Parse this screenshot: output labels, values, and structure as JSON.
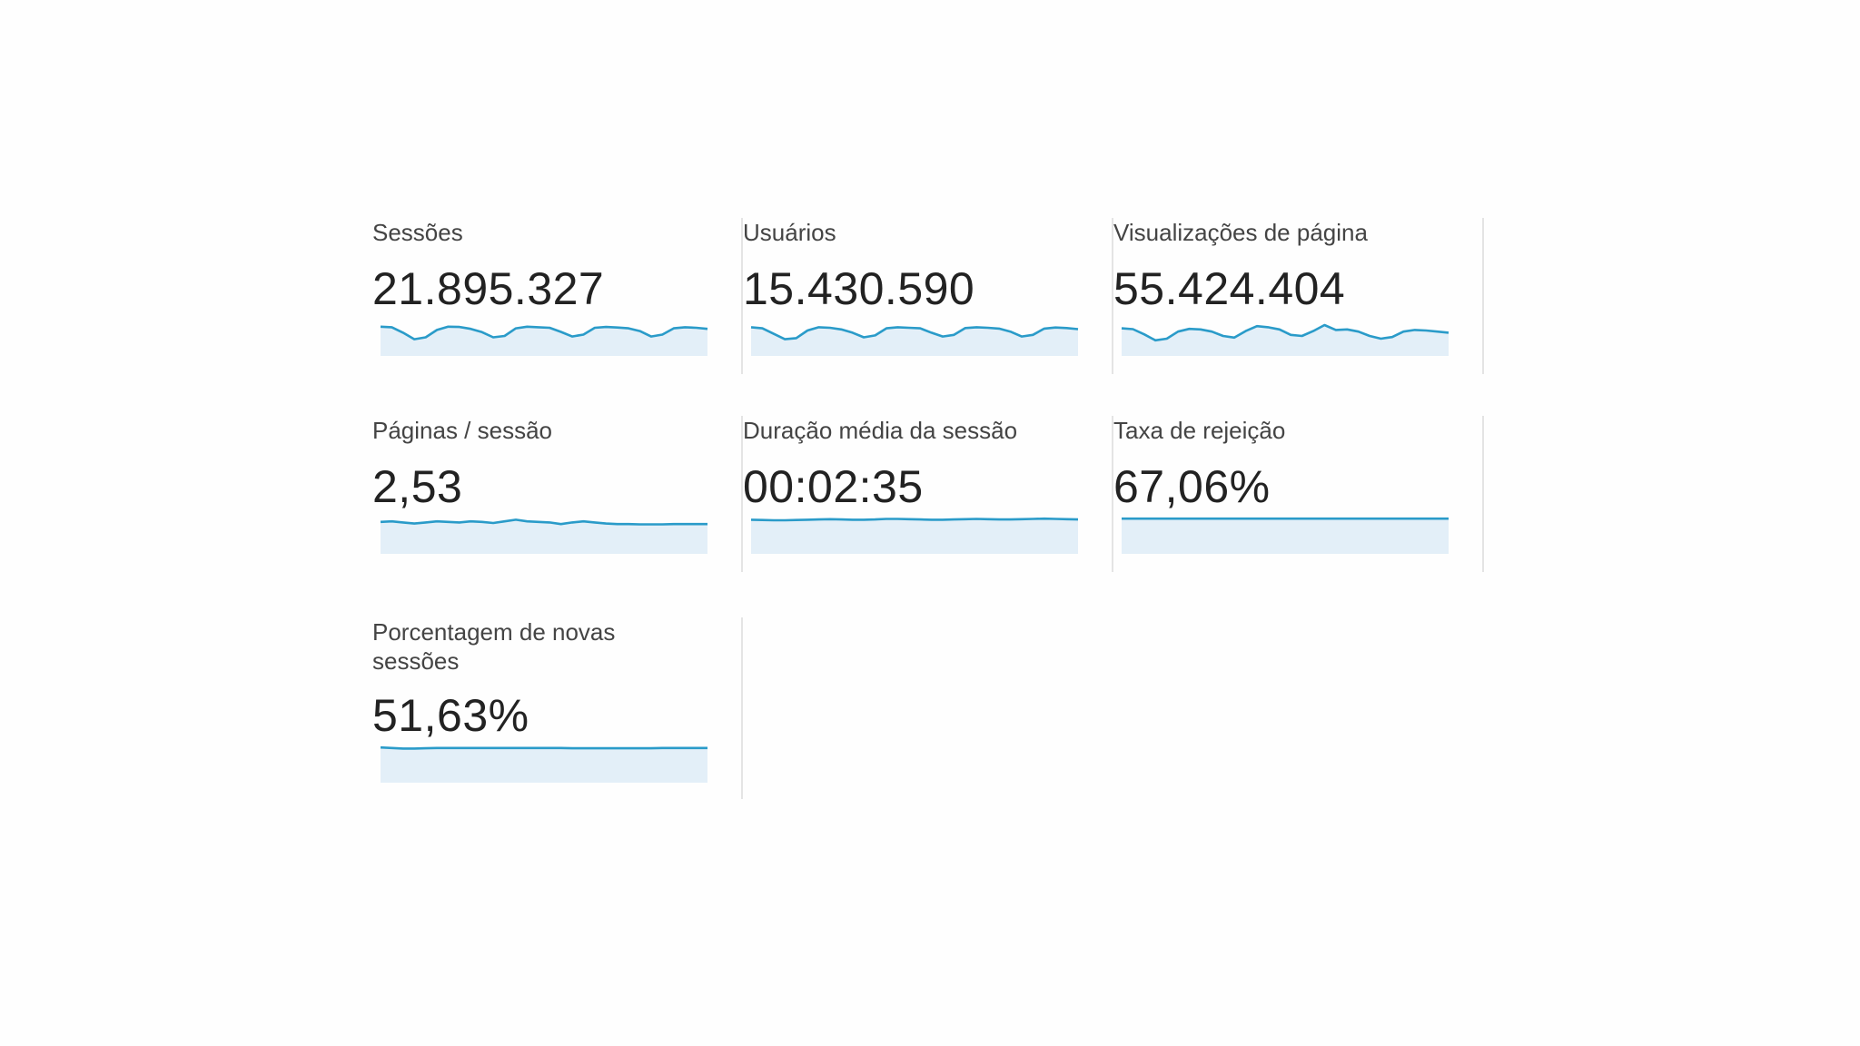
{
  "accent": "#2a9bc9",
  "fill": "#e3eff8",
  "metrics": [
    {
      "label": "Sessões",
      "value": "21.895.327",
      "sparkline": [
        0.74,
        0.72,
        0.52,
        0.28,
        0.35,
        0.62,
        0.74,
        0.73,
        0.66,
        0.54,
        0.35,
        0.4,
        0.68,
        0.74,
        0.72,
        0.7,
        0.55,
        0.38,
        0.45,
        0.7,
        0.73,
        0.71,
        0.68,
        0.58,
        0.38,
        0.45,
        0.68,
        0.72,
        0.7,
        0.66
      ]
    },
    {
      "label": "Usuários",
      "value": "15.430.590",
      "sparkline": [
        0.72,
        0.68,
        0.48,
        0.28,
        0.32,
        0.6,
        0.72,
        0.7,
        0.64,
        0.52,
        0.35,
        0.42,
        0.68,
        0.72,
        0.7,
        0.68,
        0.52,
        0.38,
        0.44,
        0.69,
        0.72,
        0.7,
        0.67,
        0.56,
        0.38,
        0.44,
        0.67,
        0.71,
        0.69,
        0.65
      ]
    },
    {
      "label": "Visualizações de página",
      "value": "55.424.404",
      "sparkline": [
        0.68,
        0.65,
        0.46,
        0.24,
        0.3,
        0.56,
        0.66,
        0.64,
        0.56,
        0.4,
        0.34,
        0.58,
        0.76,
        0.72,
        0.64,
        0.44,
        0.4,
        0.58,
        0.8,
        0.62,
        0.64,
        0.56,
        0.4,
        0.3,
        0.36,
        0.56,
        0.62,
        0.6,
        0.56,
        0.52
      ]
    },
    {
      "label": "Páginas / sessão",
      "value": "2,53",
      "sparkline": [
        0.84,
        0.86,
        0.82,
        0.78,
        0.82,
        0.86,
        0.84,
        0.82,
        0.86,
        0.84,
        0.8,
        0.86,
        0.92,
        0.86,
        0.84,
        0.82,
        0.76,
        0.82,
        0.86,
        0.82,
        0.78,
        0.76,
        0.76,
        0.75,
        0.75,
        0.75,
        0.76,
        0.76,
        0.76,
        0.76
      ]
    },
    {
      "label": "Duração média da sessão",
      "value": "00:02:35",
      "sparkline": [
        0.92,
        0.91,
        0.9,
        0.9,
        0.91,
        0.92,
        0.93,
        0.94,
        0.93,
        0.92,
        0.92,
        0.93,
        0.95,
        0.95,
        0.94,
        0.93,
        0.92,
        0.92,
        0.93,
        0.94,
        0.95,
        0.94,
        0.93,
        0.93,
        0.94,
        0.95,
        0.96,
        0.95,
        0.94,
        0.93
      ]
    },
    {
      "label": "Taxa de rejeição",
      "value": "67,06%",
      "sparkline": [
        0.96,
        0.96,
        0.96,
        0.96,
        0.96,
        0.96,
        0.96,
        0.96,
        0.96,
        0.96,
        0.96,
        0.96,
        0.96,
        0.96,
        0.96,
        0.96,
        0.96,
        0.96,
        0.96,
        0.96,
        0.96,
        0.96,
        0.96,
        0.96,
        0.96,
        0.96,
        0.96,
        0.96,
        0.96,
        0.96
      ]
    },
    {
      "label": "Porcentagem de novas sessões",
      "value": "51,63%",
      "sparkline": [
        0.96,
        0.94,
        0.92,
        0.92,
        0.93,
        0.94,
        0.94,
        0.94,
        0.94,
        0.94,
        0.94,
        0.94,
        0.94,
        0.94,
        0.94,
        0.94,
        0.94,
        0.93,
        0.93,
        0.93,
        0.93,
        0.93,
        0.93,
        0.93,
        0.93,
        0.94,
        0.94,
        0.94,
        0.94,
        0.94
      ]
    }
  ]
}
